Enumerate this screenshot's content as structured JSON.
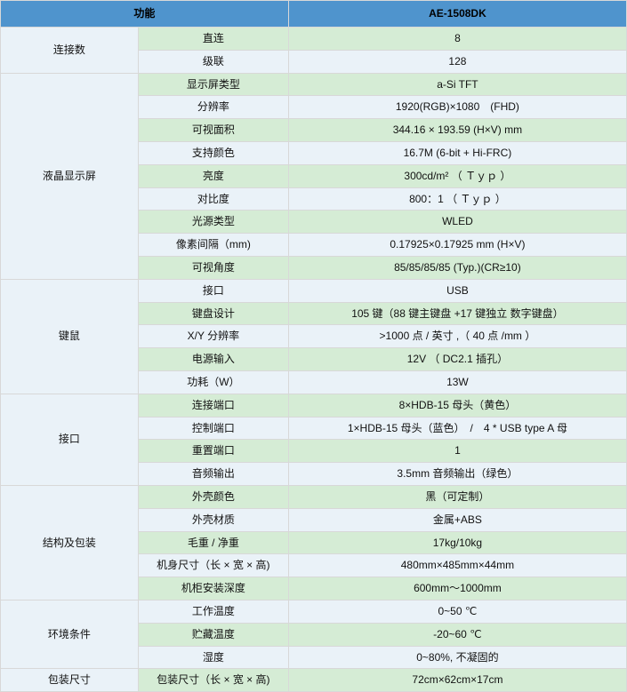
{
  "header": {
    "col1": "功能",
    "col2": "AE-1508DK"
  },
  "colors": {
    "header_bg": "#4f94cd",
    "row_green": "#d5ecd5",
    "row_light": "#eaf2f8",
    "border": "#d8d8d8"
  },
  "groups": [
    {
      "name": "连接数",
      "rows": [
        {
          "label": "直连",
          "value": "8"
        },
        {
          "label": "级联",
          "value": "128"
        }
      ]
    },
    {
      "name": "液晶显示屏",
      "rows": [
        {
          "label": "显示屏类型",
          "value": "a-Si TFT"
        },
        {
          "label": "分辨率",
          "value": "1920(RGB)×1080　(FHD)"
        },
        {
          "label": "可视面积",
          "value": "344.16 × 193.59 (H×V) mm"
        },
        {
          "label": "支持颜色",
          "value": "16.7M (6-bit + Hi-FRC)"
        },
        {
          "label": "亮度",
          "value": "300cd/m² （ Ｔｙｐ ）"
        },
        {
          "label": "对比度",
          "value": "800：1 （ Ｔｙｐ ）"
        },
        {
          "label": "光源类型",
          "value": "WLED"
        },
        {
          "label": "像素间隔（mm)",
          "value": "0.17925×0.17925 mm (H×V)"
        },
        {
          "label": "可视角度",
          "value": "85/85/85/85 (Typ.)(CR≥10)"
        }
      ]
    },
    {
      "name": "键鼠",
      "rows": [
        {
          "label": "接口",
          "value": "USB"
        },
        {
          "label": "键盘设计",
          "value": "105 键（88 键主键盘 +17 键独立 数字键盘）"
        },
        {
          "label": "X/Y 分辨率",
          "value": ">1000 点 / 英寸 ,（ 40 点 /mm ）"
        },
        {
          "label": "电源输入",
          "value": "12V （ DC2.1 插孔）"
        },
        {
          "label": "功耗（W）",
          "value": "13W"
        }
      ]
    },
    {
      "name": "接口",
      "rows": [
        {
          "label": "连接端口",
          "value": "8×HDB-15 母头（黄色）"
        },
        {
          "label": "控制端口",
          "value": "1×HDB-15 母头（蓝色）　/　4 * USB type A 母"
        },
        {
          "label": "重置端口",
          "value": "1"
        },
        {
          "label": "音频输出",
          "value": "3.5mm 音频输出（绿色）"
        }
      ]
    },
    {
      "name": "结构及包装",
      "rows": [
        {
          "label": "外壳颜色",
          "value": "黑（可定制）"
        },
        {
          "label": "外壳材质",
          "value": "金属+ABS"
        },
        {
          "label": "毛重 / 净重",
          "value": "17kg/10kg"
        },
        {
          "label": "机身尺寸（长 × 宽 × 高)",
          "value": "480mm×485mm×44mm"
        },
        {
          "label": "机柜安装深度",
          "value": "600mm～1000mm"
        }
      ]
    },
    {
      "name": "环境条件",
      "rows": [
        {
          "label": "工作温度",
          "value": "0~50 ℃"
        },
        {
          "label": "贮藏温度",
          "value": "-20~60 ℃"
        },
        {
          "label": "湿度",
          "value": "0~80%, 不凝固的"
        }
      ]
    },
    {
      "name": "包装尺寸",
      "rows": [
        {
          "label": "包装尺寸（长 × 宽 × 高)",
          "value": "72cm×62cm×17cm"
        }
      ]
    }
  ]
}
